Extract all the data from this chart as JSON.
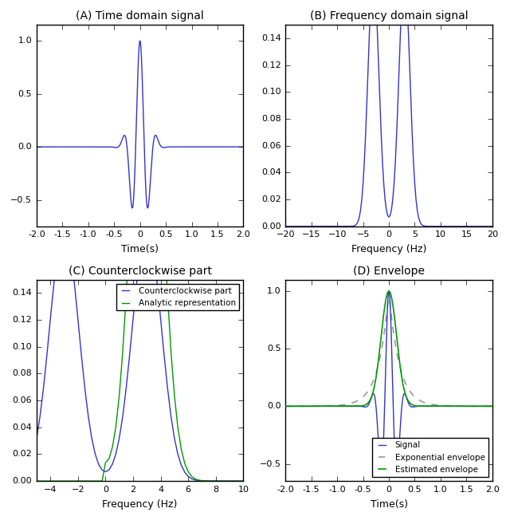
{
  "title_A": "(A) Time domain signal",
  "title_B": "(B) Frequency domain signal",
  "title_C": "(C) Counterclockwise part",
  "title_D": "(D) Envelope",
  "xlabel_time": "Time(s)",
  "xlabel_freq": "Frequency (Hz)",
  "signal_color": "#3333cc",
  "exp_env_color": "#999999",
  "est_env_color": "#009900",
  "ccw_color": "#3333cc",
  "analytic_color": "#009900",
  "freq_color": "#3333cc",
  "f0": 3.0,
  "sigma": 0.15,
  "exp_alpha": 5.0,
  "t_min": -2.0,
  "t_max": 2.0,
  "freq_B_min": -20.0,
  "freq_B_max": 20.0,
  "freq_C_min": -5.0,
  "freq_C_max": 10.0,
  "ylim_A": [
    -0.75,
    1.15
  ],
  "ylim_B": [
    0,
    0.15
  ],
  "ylim_C": [
    0,
    0.15
  ],
  "ylim_D": [
    -0.65,
    1.1
  ],
  "legend_C_entries": [
    "Counterclockwise part",
    "Analytic representation"
  ],
  "legend_D_entries": [
    "Signal",
    "Exponential envelope",
    "Estimated envelope"
  ]
}
